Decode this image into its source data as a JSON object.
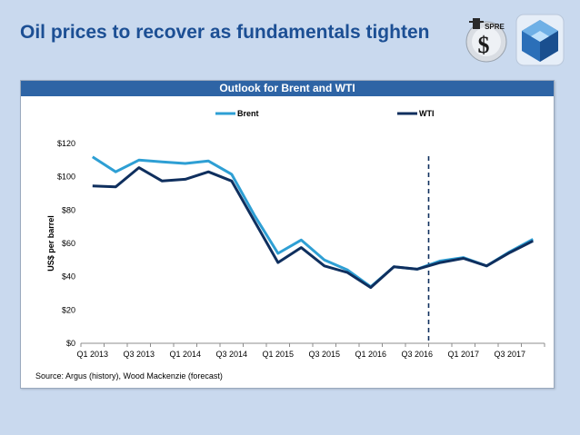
{
  "slide": {
    "title": "Oil prices to recover as fundamentals tighten",
    "logos": [
      "SPRE"
    ]
  },
  "panel": {
    "header": "Outlook for Brent and WTI",
    "source": "Source: Argus (history), Wood Mackenzie (forecast)"
  },
  "colors": {
    "brent": "#2e9fd4",
    "wti": "#0f2f5e",
    "header_bg": "#2e64a5",
    "title": "#1c4f94"
  },
  "chart_data": {
    "type": "line",
    "title": "",
    "xlabel": "",
    "ylabel": "US$ per barrel",
    "ylim": [
      0,
      120
    ],
    "yticks": [
      "$0",
      "$20",
      "$40",
      "$60",
      "$80",
      "$100",
      "$120"
    ],
    "x": [
      "Q1 2013",
      "Q2 2013",
      "Q3 2013",
      "Q4 2013",
      "Q1 2014",
      "Q2 2014",
      "Q3 2014",
      "Q4 2014",
      "Q1 2015",
      "Q2 2015",
      "Q3 2015",
      "Q4 2015",
      "Q1 2016",
      "Q2 2016",
      "Q3 2016",
      "Q4 2016",
      "Q1 2017",
      "Q2 2017",
      "Q3 2017",
      "Q4 2017"
    ],
    "xtick_labels": [
      "Q1 2013",
      "Q3 2013",
      "Q1 2014",
      "Q3 2014",
      "Q1 2015",
      "Q3 2015",
      "Q1 2016",
      "Q3 2016",
      "Q1 2017",
      "Q3 2017"
    ],
    "legend": "top",
    "forecast_marker_after": "Q3 2016",
    "series": [
      {
        "name": "Brent",
        "color": "#2e9fd4",
        "values": [
          112,
          103,
          110,
          109,
          108,
          109.5,
          101.5,
          76.5,
          54,
          62,
          50,
          44,
          34,
          46,
          44.5,
          49.5,
          51.5,
          46.5,
          55,
          62.5
        ]
      },
      {
        "name": "WTI",
        "color": "#0f2f5e",
        "values": [
          94.5,
          94,
          105.5,
          97.5,
          98.5,
          103,
          97.5,
          73,
          48.5,
          57.5,
          46.5,
          42.5,
          33.5,
          46,
          44.5,
          48.5,
          51,
          46.5,
          54.5,
          61.5
        ]
      }
    ]
  }
}
